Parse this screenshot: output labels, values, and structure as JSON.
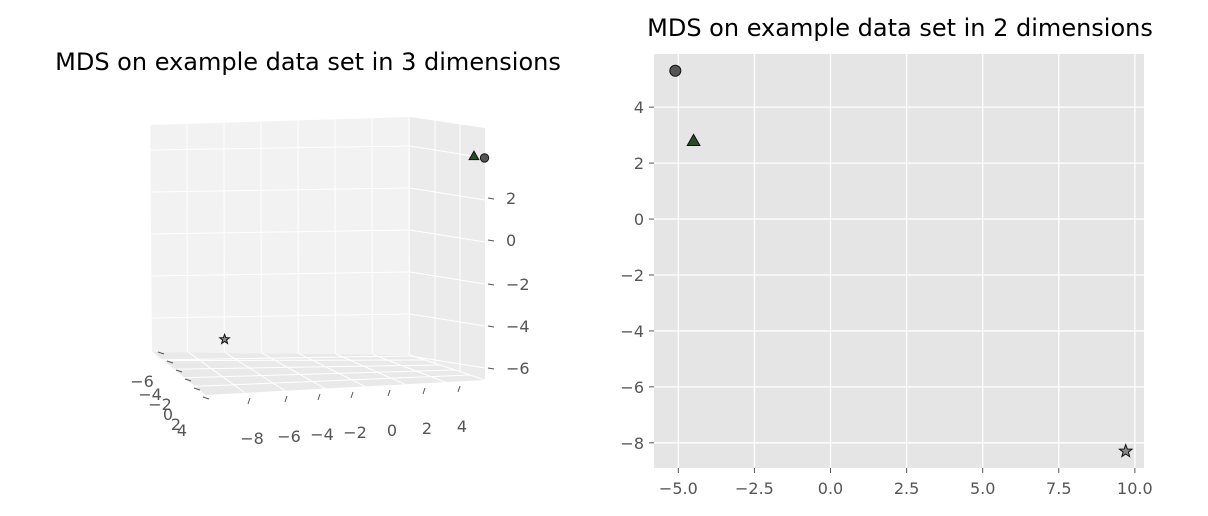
{
  "chart_data": [
    {
      "type": "scatter",
      "projection": "3d",
      "title": "MDS on example data set in 3 dimensions",
      "xlabel": "",
      "ylabel": "",
      "zlabel": "",
      "xticks": [
        "−8",
        "−6",
        "−4",
        "−2",
        "0",
        "2",
        "4"
      ],
      "yticks": [
        "−6",
        "−4",
        "−2",
        "0",
        "2",
        "4"
      ],
      "zticks": [
        "2",
        "0",
        "−2",
        "−4",
        "−6"
      ],
      "series": [
        {
          "marker": "circle",
          "color": "#555555",
          "points": [
            {
              "x": 5.2,
              "y": -4.9,
              "z": 2.9
            }
          ]
        },
        {
          "marker": "triangle",
          "color": "#2a4a2a",
          "points": [
            {
              "x": 4.6,
              "y": -4.5,
              "z": 3.0
            }
          ]
        },
        {
          "marker": "star",
          "color": "#888888",
          "points": [
            {
              "x": -9.6,
              "y": 4.5,
              "z": -5.9
            }
          ]
        }
      ]
    },
    {
      "type": "scatter",
      "title": "MDS on example data set in 2 dimensions",
      "xlabel": "",
      "ylabel": "",
      "xlim": [
        -5.8,
        10.3
      ],
      "ylim": [
        -8.9,
        5.9
      ],
      "grid": true,
      "xticks": [
        {
          "value": -5,
          "label": "−5.0"
        },
        {
          "value": -2.5,
          "label": "−2.5"
        },
        {
          "value": 0,
          "label": "0.0"
        },
        {
          "value": 2.5,
          "label": "2.5"
        },
        {
          "value": 5,
          "label": "5.0"
        },
        {
          "value": 7.5,
          "label": "7.5"
        },
        {
          "value": 10,
          "label": "10.0"
        }
      ],
      "yticks": [
        {
          "value": 4,
          "label": "4"
        },
        {
          "value": 2,
          "label": "2"
        },
        {
          "value": 0,
          "label": "0"
        },
        {
          "value": -2,
          "label": "−2"
        },
        {
          "value": -4,
          "label": "−4"
        },
        {
          "value": -6,
          "label": "−6"
        },
        {
          "value": -8,
          "label": "−8"
        }
      ],
      "colors": {
        "background": "#e5e5e5",
        "grid": "#ffffff"
      },
      "series": [
        {
          "marker": "circle",
          "color": "#555555",
          "points": [
            {
              "x": -5.1,
              "y": 5.3
            }
          ]
        },
        {
          "marker": "triangle",
          "color": "#2a4a2a",
          "points": [
            {
              "x": -4.5,
              "y": 2.8
            }
          ]
        },
        {
          "marker": "star",
          "color": "#888888",
          "points": [
            {
              "x": 9.7,
              "y": -8.3
            }
          ]
        }
      ]
    }
  ]
}
